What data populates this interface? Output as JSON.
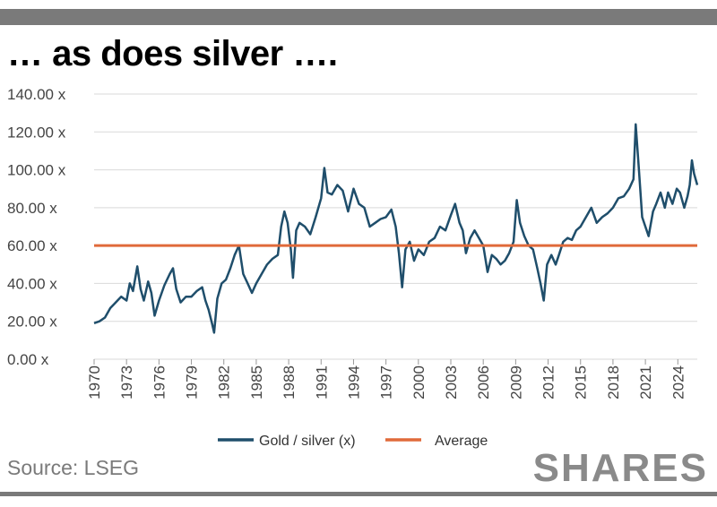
{
  "title": "… as does silver ….",
  "source": "Source: LSEG",
  "brand": "SHARES",
  "chart_data": {
    "type": "line",
    "title": "… as does silver ….",
    "xlabel": "",
    "ylabel": "",
    "ylim": [
      0,
      140
    ],
    "xlim": [
      1970,
      2025.8
    ],
    "grid": true,
    "legend_position": "bottom",
    "y_ticks": [
      "0.00 x",
      "20.00 x",
      "40.00 x",
      "60.00 x",
      "80.00 x",
      "100.00 x",
      "120.00 x",
      "140.00 x"
    ],
    "x_ticks": [
      "1970",
      "1973",
      "1976",
      "1979",
      "1982",
      "1985",
      "1988",
      "1991",
      "1994",
      "1997",
      "2000",
      "2003",
      "2006",
      "2009",
      "2012",
      "2015",
      "2018",
      "2021",
      "2024"
    ],
    "series": [
      {
        "name": "Gold / silver (x)",
        "color": "#1f4e6b",
        "points": [
          [
            1970.0,
            19
          ],
          [
            1970.5,
            20
          ],
          [
            1971.0,
            22
          ],
          [
            1971.5,
            27
          ],
          [
            1972.0,
            30
          ],
          [
            1972.5,
            33
          ],
          [
            1973.0,
            31
          ],
          [
            1973.3,
            40
          ],
          [
            1973.6,
            36
          ],
          [
            1974.0,
            49
          ],
          [
            1974.3,
            37
          ],
          [
            1974.6,
            31
          ],
          [
            1975.0,
            41
          ],
          [
            1975.3,
            35
          ],
          [
            1975.6,
            23
          ],
          [
            1976.0,
            31
          ],
          [
            1976.5,
            39
          ],
          [
            1977.0,
            45
          ],
          [
            1977.3,
            48
          ],
          [
            1977.6,
            37
          ],
          [
            1978.0,
            30
          ],
          [
            1978.5,
            33
          ],
          [
            1979.0,
            33
          ],
          [
            1979.5,
            36
          ],
          [
            1980.0,
            38
          ],
          [
            1980.3,
            31
          ],
          [
            1980.6,
            26
          ],
          [
            1980.9,
            19
          ],
          [
            1981.1,
            14
          ],
          [
            1981.4,
            32
          ],
          [
            1981.8,
            40
          ],
          [
            1982.2,
            42
          ],
          [
            1982.6,
            48
          ],
          [
            1983.0,
            55
          ],
          [
            1983.4,
            60
          ],
          [
            1983.8,
            45
          ],
          [
            1984.2,
            40
          ],
          [
            1984.6,
            35
          ],
          [
            1985.0,
            40
          ],
          [
            1985.5,
            45
          ],
          [
            1986.0,
            50
          ],
          [
            1986.5,
            53
          ],
          [
            1987.0,
            55
          ],
          [
            1987.3,
            70
          ],
          [
            1987.6,
            78
          ],
          [
            1987.9,
            72
          ],
          [
            1988.2,
            58
          ],
          [
            1988.4,
            43
          ],
          [
            1988.7,
            68
          ],
          [
            1989.0,
            72
          ],
          [
            1989.5,
            70
          ],
          [
            1990.0,
            66
          ],
          [
            1990.5,
            75
          ],
          [
            1991.0,
            85
          ],
          [
            1991.3,
            101
          ],
          [
            1991.6,
            88
          ],
          [
            1992.0,
            87
          ],
          [
            1992.5,
            92
          ],
          [
            1993.0,
            89
          ],
          [
            1993.5,
            78
          ],
          [
            1994.0,
            90
          ],
          [
            1994.5,
            82
          ],
          [
            1995.0,
            80
          ],
          [
            1995.5,
            70
          ],
          [
            1996.0,
            72
          ],
          [
            1996.5,
            74
          ],
          [
            1997.0,
            75
          ],
          [
            1997.5,
            79
          ],
          [
            1997.9,
            70
          ],
          [
            1998.2,
            56
          ],
          [
            1998.5,
            38
          ],
          [
            1998.8,
            58
          ],
          [
            1999.2,
            62
          ],
          [
            1999.6,
            52
          ],
          [
            2000.0,
            58
          ],
          [
            2000.5,
            55
          ],
          [
            2001.0,
            62
          ],
          [
            2001.5,
            64
          ],
          [
            2002.0,
            70
          ],
          [
            2002.5,
            68
          ],
          [
            2003.0,
            76
          ],
          [
            2003.4,
            82
          ],
          [
            2003.8,
            72
          ],
          [
            2004.1,
            68
          ],
          [
            2004.4,
            56
          ],
          [
            2004.8,
            64
          ],
          [
            2005.2,
            68
          ],
          [
            2005.6,
            64
          ],
          [
            2006.0,
            60
          ],
          [
            2006.4,
            46
          ],
          [
            2006.8,
            55
          ],
          [
            2007.2,
            53
          ],
          [
            2007.6,
            50
          ],
          [
            2008.0,
            52
          ],
          [
            2008.4,
            56
          ],
          [
            2008.8,
            62
          ],
          [
            2009.1,
            84
          ],
          [
            2009.4,
            72
          ],
          [
            2009.8,
            65
          ],
          [
            2010.2,
            60
          ],
          [
            2010.6,
            58
          ],
          [
            2011.0,
            48
          ],
          [
            2011.3,
            40
          ],
          [
            2011.6,
            31
          ],
          [
            2011.9,
            50
          ],
          [
            2012.3,
            55
          ],
          [
            2012.7,
            50
          ],
          [
            2013.0,
            55
          ],
          [
            2013.4,
            62
          ],
          [
            2013.8,
            64
          ],
          [
            2014.2,
            63
          ],
          [
            2014.6,
            68
          ],
          [
            2015.0,
            70
          ],
          [
            2015.5,
            75
          ],
          [
            2016.0,
            80
          ],
          [
            2016.5,
            72
          ],
          [
            2017.0,
            75
          ],
          [
            2017.5,
            77
          ],
          [
            2018.0,
            80
          ],
          [
            2018.5,
            85
          ],
          [
            2019.0,
            86
          ],
          [
            2019.5,
            90
          ],
          [
            2019.9,
            95
          ],
          [
            2020.1,
            124
          ],
          [
            2020.4,
            100
          ],
          [
            2020.7,
            75
          ],
          [
            2021.0,
            70
          ],
          [
            2021.3,
            65
          ],
          [
            2021.7,
            78
          ],
          [
            2022.0,
            82
          ],
          [
            2022.4,
            88
          ],
          [
            2022.8,
            80
          ],
          [
            2023.1,
            88
          ],
          [
            2023.5,
            82
          ],
          [
            2023.9,
            90
          ],
          [
            2024.2,
            88
          ],
          [
            2024.6,
            80
          ],
          [
            2024.9,
            86
          ],
          [
            2025.1,
            92
          ],
          [
            2025.3,
            105
          ],
          [
            2025.5,
            98
          ],
          [
            2025.8,
            92
          ]
        ]
      },
      {
        "name": "Average",
        "color": "#e06a3a",
        "points": [
          [
            1970.0,
            60
          ],
          [
            2025.8,
            60
          ]
        ]
      }
    ]
  }
}
